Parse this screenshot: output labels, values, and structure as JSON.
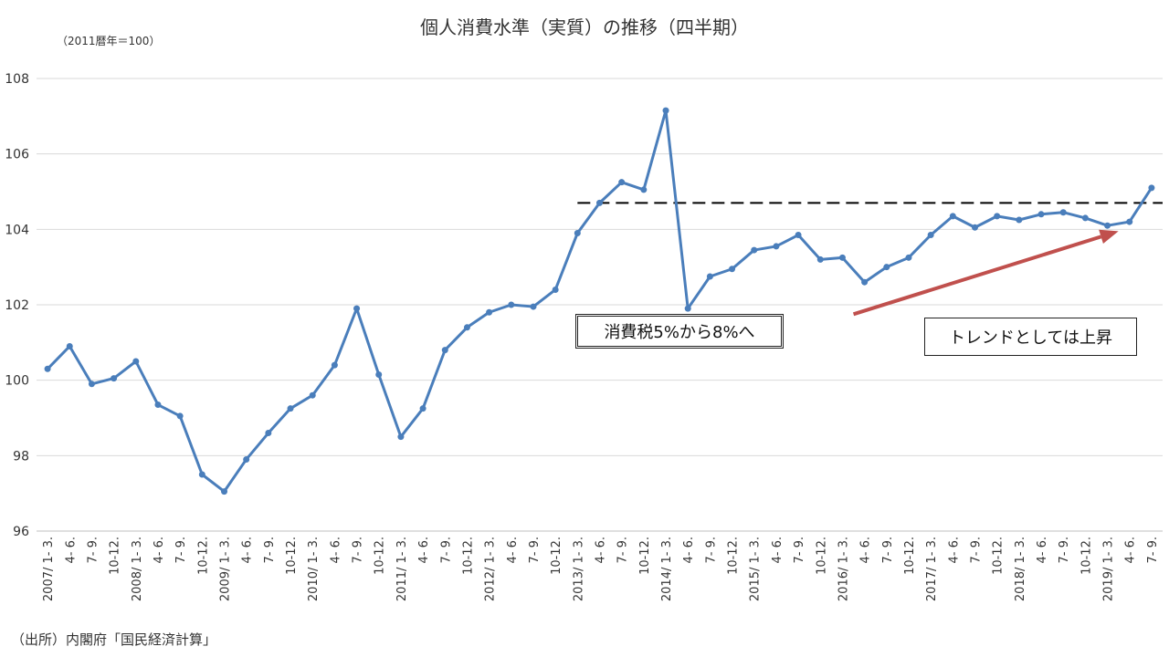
{
  "title": "個人消費水準（実質）の推移（四半期）",
  "unit_note": "（2011暦年＝100）",
  "source": "（出所）内閣府「国民経済計算」",
  "annotations": {
    "tax_note": "消費税5%から8%へ",
    "trend_note": "トレンドとしては上昇"
  },
  "colors": {
    "line": "#4a7ebb",
    "trend_arrow": "#c0504d",
    "reference_line": "#000000",
    "grid": "#d9d9d9"
  },
  "chart_data": {
    "type": "line",
    "title": "個人消費水準（実質）の推移（四半期）",
    "ylim": [
      96,
      108
    ],
    "yticks": [
      96,
      98,
      100,
      102,
      104,
      106,
      108
    ],
    "grid": true,
    "categories": [
      "2007/ 1- 3.",
      "4- 6.",
      "7- 9.",
      "10-12.",
      "2008/ 1- 3.",
      "4- 6.",
      "7- 9.",
      "10-12.",
      "2009/ 1- 3.",
      "4- 6.",
      "7- 9.",
      "10-12.",
      "2010/ 1- 3.",
      "4- 6.",
      "7- 9.",
      "10-12.",
      "2011/ 1- 3.",
      "4- 6.",
      "7- 9.",
      "10-12.",
      "2012/ 1- 3.",
      "4- 6.",
      "7- 9.",
      "10-12.",
      "2013/ 1- 3.",
      "4- 6.",
      "7- 9.",
      "10-12.",
      "2014/ 1- 3.",
      "4- 6.",
      "7- 9.",
      "10-12.",
      "2015/ 1- 3.",
      "4- 6.",
      "7- 9.",
      "10-12.",
      "2016/ 1- 3.",
      "4- 6.",
      "7- 9.",
      "10-12.",
      "2017/ 1- 3.",
      "4- 6.",
      "7- 9.",
      "10-12.",
      "2018/ 1- 3.",
      "4- 6.",
      "7- 9.",
      "10-12.",
      "2019/ 1- 3.",
      "4- 6.",
      "7- 9."
    ],
    "values": [
      100.3,
      100.9,
      99.9,
      100.05,
      100.5,
      99.35,
      99.05,
      97.5,
      97.05,
      97.9,
      98.6,
      99.25,
      99.6,
      100.4,
      101.9,
      100.15,
      98.5,
      99.25,
      100.8,
      101.4,
      101.8,
      102.0,
      101.95,
      102.4,
      103.9,
      104.7,
      105.25,
      105.05,
      107.15,
      101.9,
      102.75,
      102.95,
      103.45,
      103.55,
      103.85,
      103.2,
      103.25,
      102.6,
      103.0,
      103.25,
      103.85,
      104.35,
      104.05,
      104.35,
      104.25,
      104.4,
      104.45,
      104.3,
      104.1,
      104.2,
      105.1
    ],
    "reference_line": {
      "y": 104.7,
      "from_category_index": 24,
      "style": "dashed"
    },
    "trend_arrow": {
      "from": [
        36.5,
        101.75
      ],
      "to": [
        48.5,
        103.95
      ]
    }
  }
}
